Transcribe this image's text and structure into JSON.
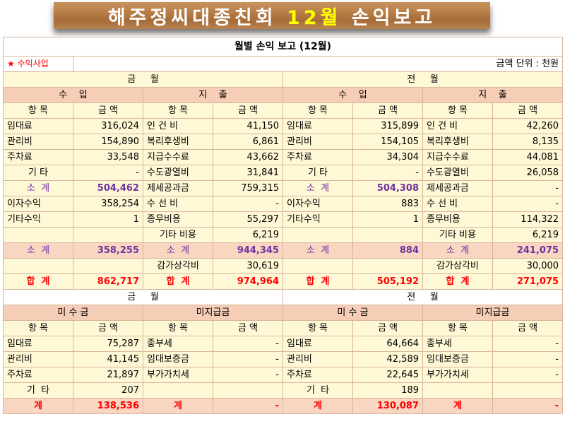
{
  "banner": {
    "part1": "해주정씨대종친회 ",
    "part2": "12월",
    "part3": " 손익보고"
  },
  "report_title": "월별 손익 보고 (12월)",
  "section_label": "★ 수익사업",
  "unit_label": "금액 단위 : 천원",
  "period_current": "금     월",
  "period_previous": "전     월",
  "income_label": "수    입",
  "expense_label": "지    출",
  "col_item": "항 목",
  "col_amount": "금 액",
  "rows": [
    {
      "ci": "임대료",
      "ca": "316,024",
      "ce": "인 건 비",
      "cx": "41,150",
      "pi": "임대료",
      "pa": "315,899",
      "pe": "인 건 비",
      "px": "42,260"
    },
    {
      "ci": "관리비",
      "ca": "154,890",
      "ce": "복리후생비",
      "cx": "6,861",
      "pi": "관리비",
      "pa": "154,105",
      "pe": "복리후생비",
      "px": "8,135"
    },
    {
      "ci": "주차료",
      "ca": "33,548",
      "ce": "지급수수료",
      "cx": "43,662",
      "pi": "주차료",
      "pa": "34,304",
      "pe": "지급수수료",
      "px": "44,081"
    },
    {
      "ci": "기 타",
      "ca": "-",
      "ce": "수도광열비",
      "cx": "31,841",
      "pi": "기 타",
      "pa": "-",
      "pe": "수도광열비",
      "px": "26,058"
    },
    {
      "ci": "소  계",
      "ca": "504,462",
      "ce": "제세공과금",
      "cx": "759,315",
      "pi": "소  계",
      "pa": "504,308",
      "pe": "제세공과금",
      "px": "-"
    },
    {
      "ci": "이자수익",
      "ca": "358,254",
      "ce": "수 선 비",
      "cx": "-",
      "pi": "이자수익",
      "pa": "883",
      "pe": "수 선 비",
      "px": "-"
    },
    {
      "ci": "기타수익",
      "ca": "1",
      "ce": "종무비용",
      "cx": "55,297",
      "pi": "기타수익",
      "pa": "1",
      "pe": "종무비용",
      "px": "114,322"
    },
    {
      "ci": "",
      "ca": "",
      "ce": "기타 비용",
      "cx": "6,219",
      "pi": "",
      "pa": "",
      "pe": "기타 비용",
      "px": "6,219"
    }
  ],
  "subtotal": {
    "label": "소  계",
    "ca": "358,255",
    "cx": "944,345",
    "pa": "884",
    "px": "241,075"
  },
  "depreciation": {
    "label": "감가상각비",
    "cx": "30,619",
    "px": "30,000"
  },
  "total": {
    "label": "합  계",
    "ca": "862,717",
    "cx": "974,964",
    "pa": "505,192",
    "px": "271,075"
  },
  "receivable_label": "미 수 금",
  "payable_label": "미지급금",
  "rec_rows": [
    {
      "ci": "임대료",
      "ca": "75,287",
      "ce": "종부세",
      "cx": "-",
      "pi": "임대료",
      "pa": "64,664",
      "pe": "종부세",
      "px": "-"
    },
    {
      "ci": "관리비",
      "ca": "41,145",
      "ce": "임대보증금",
      "cx": "-",
      "pi": "관리비",
      "pa": "42,589",
      "pe": "임대보증금",
      "px": "-"
    },
    {
      "ci": "주차료",
      "ca": "21,897",
      "ce": "부가가치세",
      "cx": "-",
      "pi": "주차료",
      "pa": "22,645",
      "pe": "부가가치세",
      "px": "-"
    },
    {
      "ci": "기  타",
      "ca": "207",
      "ce": "",
      "cx": "",
      "pi": "기  타",
      "pa": "189",
      "pe": "",
      "px": ""
    }
  ],
  "rec_total": {
    "label": "계",
    "ca": "138,536",
    "cx": "-",
    "pa": "130,087",
    "px": "-"
  }
}
